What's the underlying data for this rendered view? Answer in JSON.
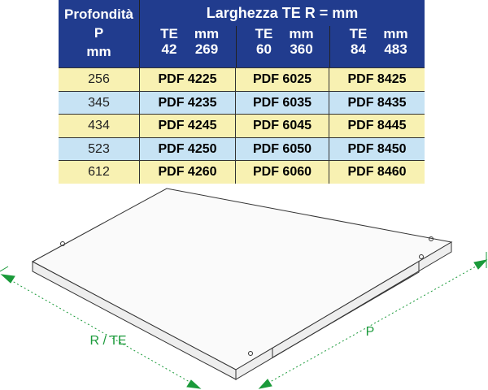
{
  "table": {
    "header": {
      "depth": [
        "Profondità",
        "P",
        "mm"
      ],
      "width": "Larghezza TE  R = mm",
      "columns": [
        {
          "te": "TE",
          "mm": "mm",
          "te_value": "42",
          "mm_value": "269"
        },
        {
          "te": "TE",
          "mm": "mm",
          "te_value": "60",
          "mm_value": "360"
        },
        {
          "te": "TE",
          "mm": "mm",
          "te_value": "84",
          "mm_value": "483"
        }
      ]
    },
    "rows": [
      [
        "256",
        "PDF 4225",
        "PDF 6025",
        "PDF 8425"
      ],
      [
        "345",
        "PDF 4235",
        "PDF 6035",
        "PDF 8435"
      ],
      [
        "434",
        "PDF 4245",
        "PDF 6045",
        "PDF 8445"
      ],
      [
        "523",
        "PDF 4250",
        "PDF 6050",
        "PDF 8450"
      ],
      [
        "612",
        "PDF 4260",
        "PDF 6060",
        "PDF 8460"
      ]
    ]
  },
  "diagram": {
    "width_label": "R / TE",
    "depth_label": "P"
  }
}
